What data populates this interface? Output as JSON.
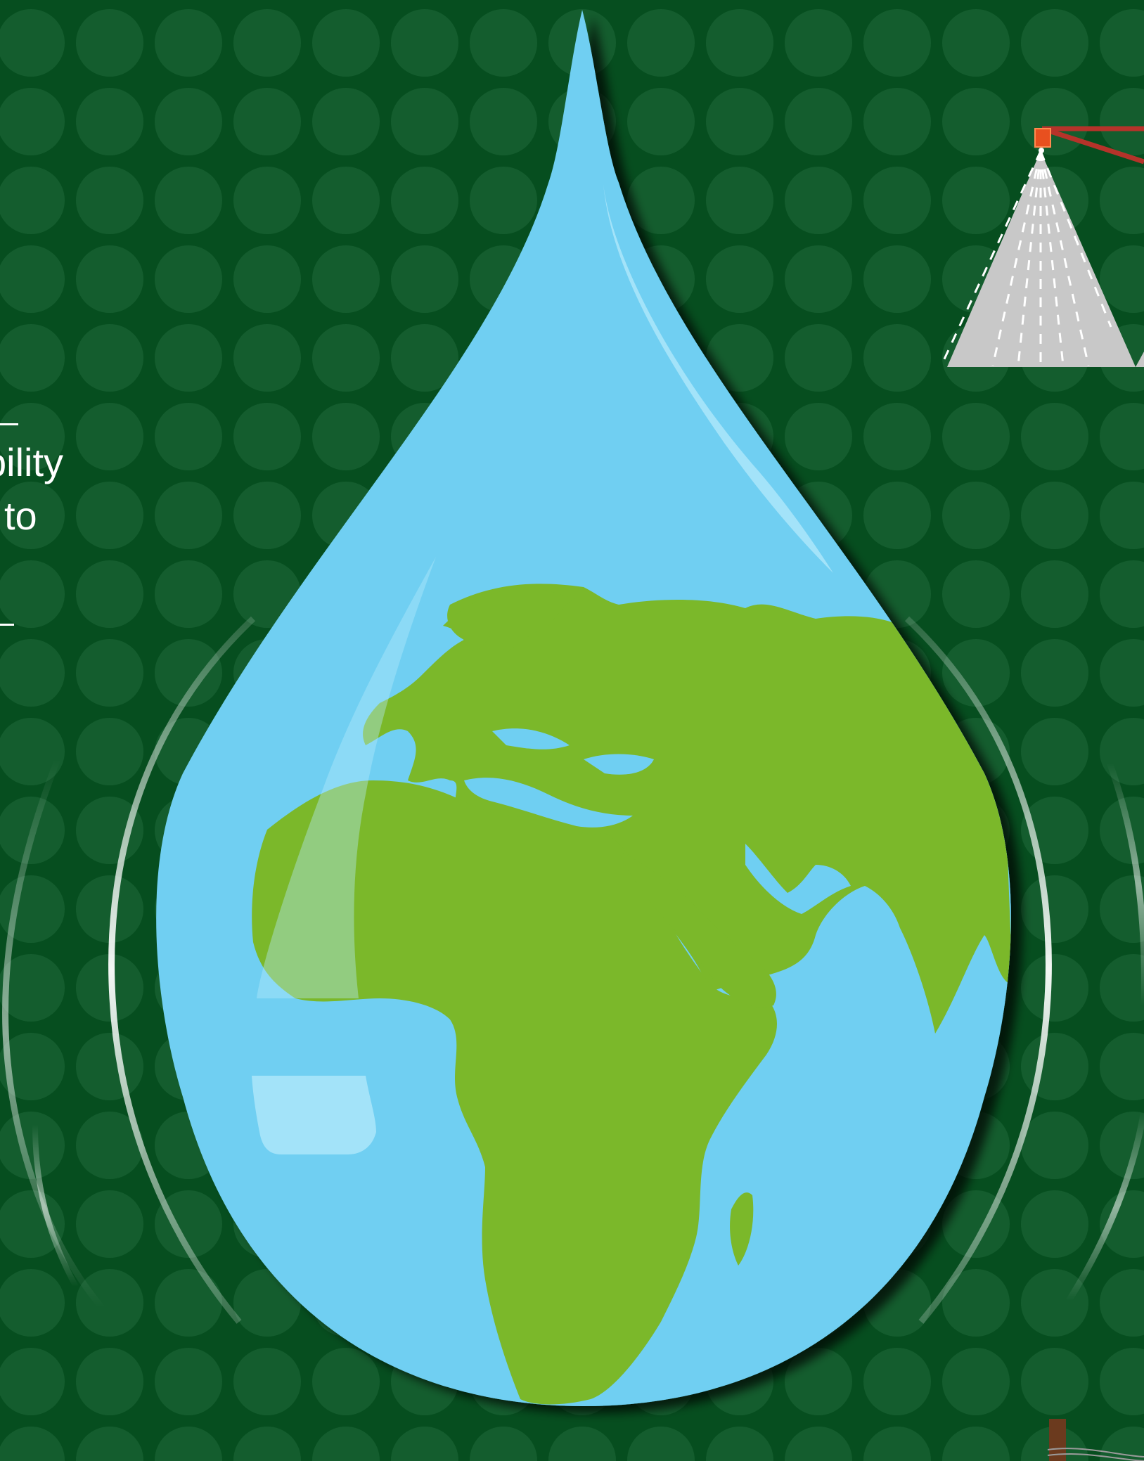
{
  "text": {
    "lines": [
      "bility",
      "l to"
    ]
  },
  "colors": {
    "background": "#064e1f",
    "dots": "#1e6a3a",
    "drop": "#6fcff2",
    "drop_highlight": "#b4e9fb",
    "land": "#7bb82a",
    "ripple": "#ffffff",
    "nozzle": "#e8501f",
    "pipe": "#b5332a",
    "spray": "#c8c8c8",
    "post": "#6b3a1e"
  },
  "icons": {
    "illustration": "water-drop-earth-icon",
    "sprayer": "spray-nozzle-icon"
  }
}
